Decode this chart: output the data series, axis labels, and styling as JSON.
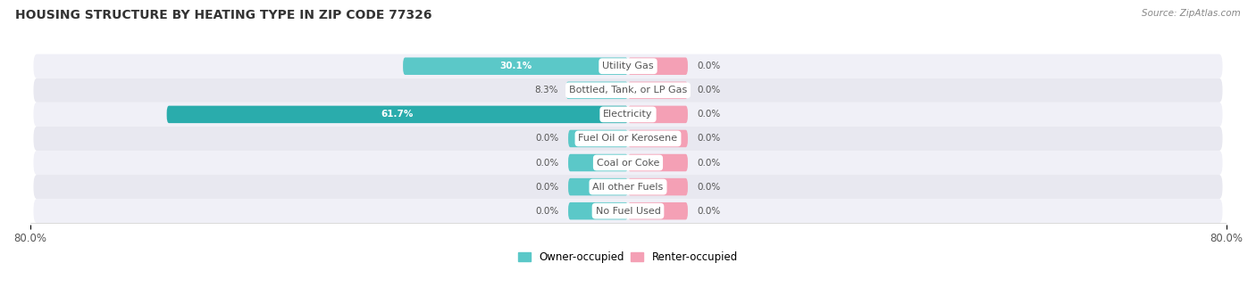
{
  "title": "HOUSING STRUCTURE BY HEATING TYPE IN ZIP CODE 77326",
  "source": "Source: ZipAtlas.com",
  "categories": [
    "Utility Gas",
    "Bottled, Tank, or LP Gas",
    "Electricity",
    "Fuel Oil or Kerosene",
    "Coal or Coke",
    "All other Fuels",
    "No Fuel Used"
  ],
  "owner_values": [
    30.1,
    8.3,
    61.7,
    0.0,
    0.0,
    0.0,
    0.0
  ],
  "renter_values": [
    0.0,
    0.0,
    0.0,
    0.0,
    0.0,
    0.0,
    0.0
  ],
  "owner_colors": [
    "#5bc8c8",
    "#5bc8c8",
    "#2aacac",
    "#5bc8c8",
    "#5bc8c8",
    "#5bc8c8",
    "#5bc8c8"
  ],
  "renter_color": "#f4a0b5",
  "row_bg_color_odd": "#f0f0f7",
  "row_bg_color_even": "#e8e8f0",
  "label_color": "#555555",
  "title_color": "#333333",
  "source_color": "#888888",
  "xlim": [
    -80,
    80
  ],
  "stub_size": 8.0,
  "bar_height": 0.72,
  "figsize": [
    14.06,
    3.41
  ],
  "dpi": 100
}
